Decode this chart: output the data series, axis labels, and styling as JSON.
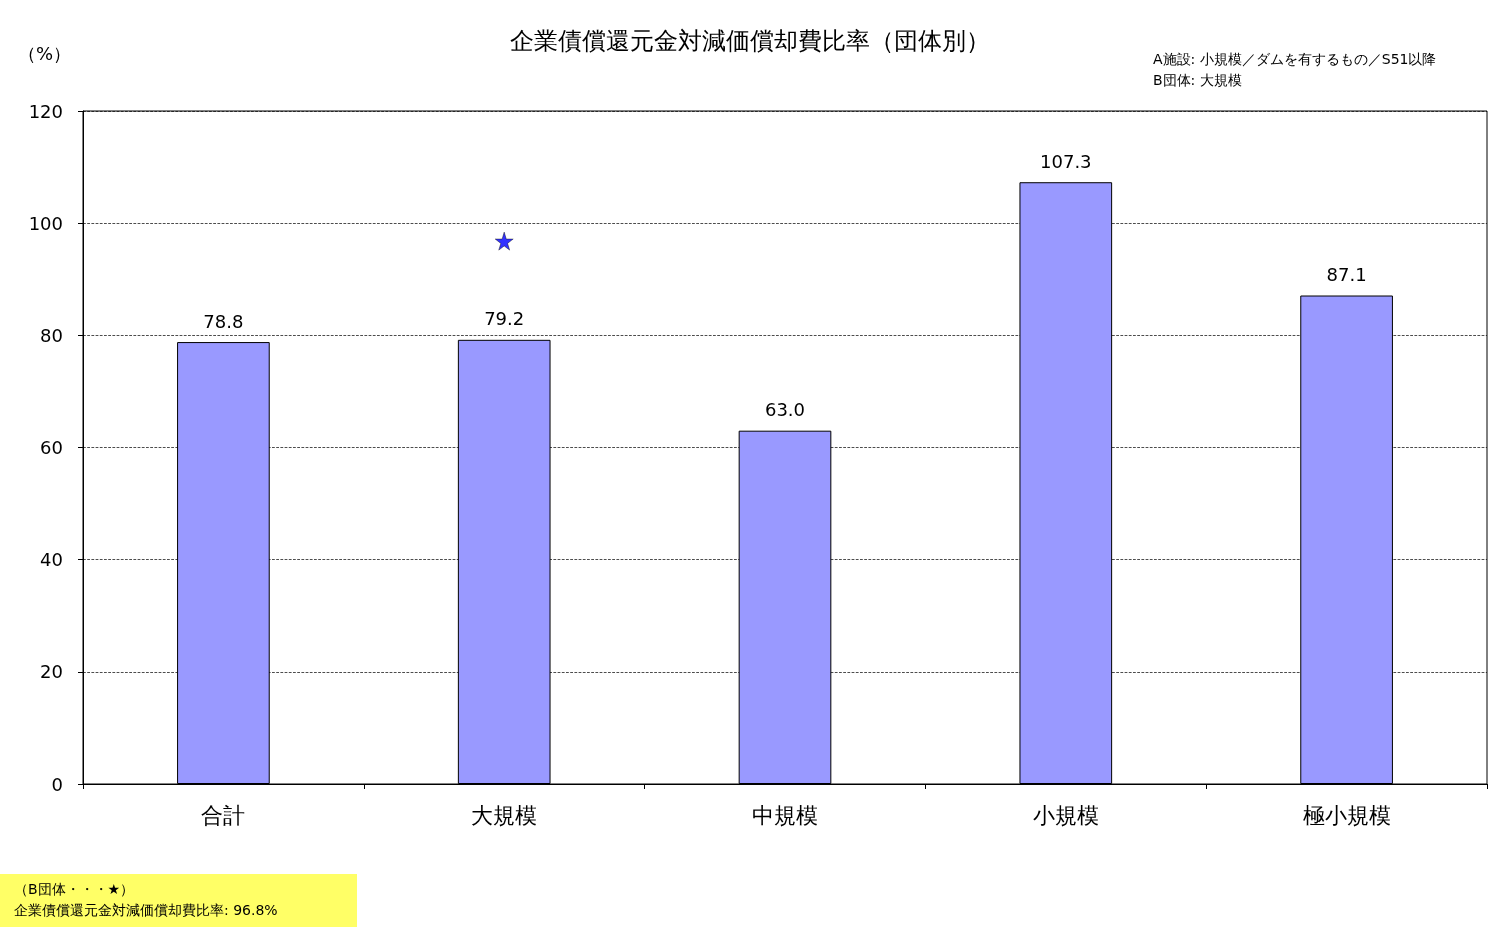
{
  "chart_data": {
    "type": "bar",
    "title": "企業債償還元金対減価償却費比率（団体別）",
    "ylabel": "（%）",
    "categories": [
      "合計",
      "大規模",
      "中規模",
      "小規模",
      "極小規模"
    ],
    "series": [
      {
        "color": "#9999ff",
        "values": [
          78.8,
          79.2,
          63.0,
          107.3,
          87.1
        ],
        "value_labels": [
          "78.8",
          "79.2",
          "63.0",
          "107.3",
          "87.1"
        ]
      },
      {
        "type": "scatter",
        "color": "#0000ff",
        "x": [
          "大規模"
        ],
        "values": [
          96.8
        ],
        "marker": "star"
      }
    ],
    "ylim": [
      0,
      120
    ],
    "yticks": [
      0,
      20,
      40,
      60,
      80,
      100,
      120
    ],
    "grid": "y",
    "annotations": [
      "A施設: 小規模／ダムを有するもの／S51以降",
      "B団体: 大規模",
      "（B団体・・・★）",
      "企業債償還元金対減価償却費比率: 96.8%"
    ]
  }
}
